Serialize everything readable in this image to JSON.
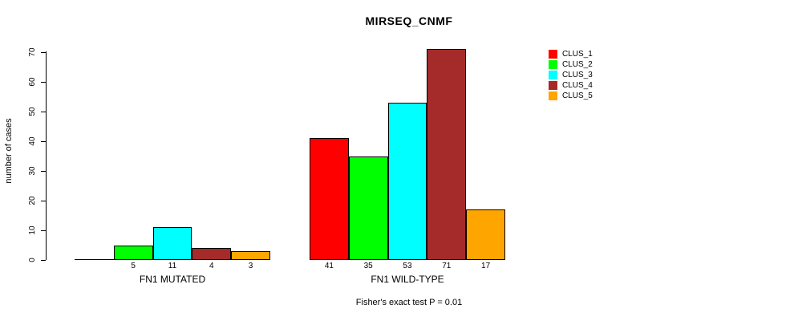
{
  "title": "MIRSEQ_CNMF",
  "ylabel": "number of cases",
  "footnote": "Fisher's exact test P = 0.01",
  "chart_data": {
    "type": "bar",
    "title": "MIRSEQ_CNMF",
    "xlabel": "",
    "ylabel": "number of cases",
    "ylim": [
      0,
      70
    ],
    "yticks": [
      0,
      10,
      20,
      30,
      40,
      50,
      60,
      70
    ],
    "grid": false,
    "legend_position": "right",
    "series_names": [
      "CLUS_1",
      "CLUS_2",
      "CLUS_3",
      "CLUS_4",
      "CLUS_5"
    ],
    "series_colors": [
      "#FF0000",
      "#00FF00",
      "#00FFFF",
      "#A52A2A",
      "#FFA500"
    ],
    "groups": [
      {
        "label": "FN1 MUTATED",
        "values": [
          0,
          5,
          11,
          4,
          3
        ],
        "value_labels": [
          "",
          "5",
          "11",
          "4",
          "3"
        ]
      },
      {
        "label": "FN1 WILD-TYPE",
        "values": [
          41,
          35,
          53,
          71,
          17
        ],
        "value_labels": [
          "41",
          "35",
          "53",
          "71",
          "17"
        ]
      }
    ]
  },
  "legend": {
    "items": [
      {
        "label": "CLUS_1",
        "color": "#FF0000"
      },
      {
        "label": "CLUS_2",
        "color": "#00FF00"
      },
      {
        "label": "CLUS_3",
        "color": "#00FFFF"
      },
      {
        "label": "CLUS_4",
        "color": "#A52A2A"
      },
      {
        "label": "CLUS_5",
        "color": "#FFA500"
      }
    ]
  }
}
